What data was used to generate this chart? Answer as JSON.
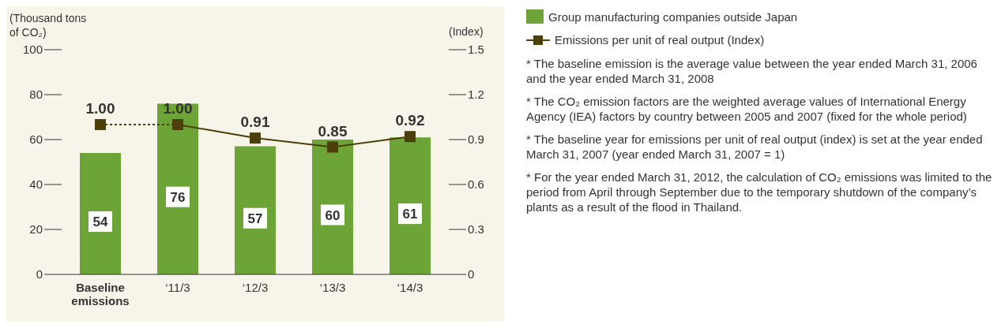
{
  "chart_data": {
    "type": "bar",
    "ylabel": "(Thousand tons of CO₂)",
    "y2label": "(Index)",
    "categories": [
      "Baseline emissions",
      "‘11/3",
      "‘12/3",
      "‘13/3",
      "‘14/3"
    ],
    "ylim": [
      0,
      100
    ],
    "yticks": [
      0,
      20,
      40,
      60,
      80,
      100
    ],
    "y2lim": [
      0,
      1.5
    ],
    "y2ticks": [
      0,
      0.3,
      0.6,
      0.9,
      1.2,
      1.5
    ],
    "legend": "right",
    "marker": "square",
    "series": [
      {
        "name": "Group manufacturing companies outside Japan",
        "color": "#6ca437",
        "values": [
          54,
          76,
          57,
          60,
          61
        ],
        "value_labels": [
          "54",
          "76",
          "57",
          "60",
          "61"
        ]
      },
      {
        "type": "line",
        "axis": "y2",
        "color": "#4d3f0a",
        "line_style": "dotted",
        "values": [
          1.0,
          1.0,
          null,
          null,
          null
        ],
        "value_labels": [
          "1.00",
          null,
          null,
          null,
          null
        ]
      },
      {
        "type": "line",
        "axis": "y2",
        "name": "Emissions per unit of real output (Index)",
        "color": "#4d3f0a",
        "line_style": "solid",
        "values": [
          null,
          1.0,
          0.91,
          0.85,
          0.92
        ],
        "value_labels": [
          null,
          "1.00",
          "0.91",
          "0.85",
          "0.92"
        ]
      }
    ],
    "annotations": [
      "* The baseline emission is the average value between the year ended March 31, 2006 and the year ended March 31, 2008",
      "* The CO₂ emission factors are the weighted average values of International Energy Agency (IEA) factors by country between 2005 and 2007 (fixed for the whole period)",
      "* The baseline year for emissions per unit of real output (index) is set at the year ended March 31, 2007 (year ended March 31, 2007 = 1)",
      "* For the year ended March 31, 2012, the calculation of CO₂ emissions was limited to the period from April through September due to the temporary shutdown of the company’s plants as a result of the flood in Thailand."
    ]
  }
}
